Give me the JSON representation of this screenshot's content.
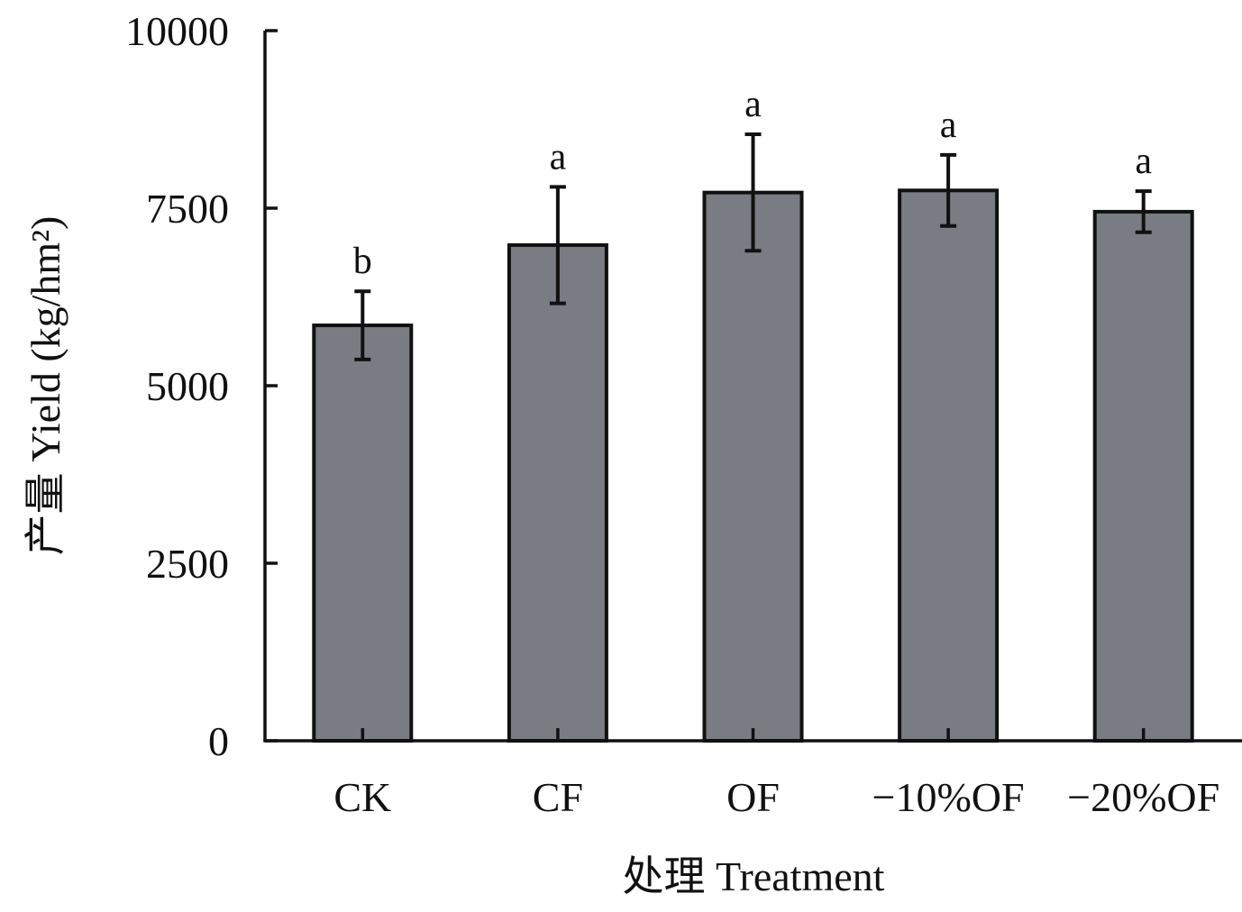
{
  "chart_data": {
    "type": "bar",
    "categories": [
      "CK",
      "CF",
      "OF",
      "−10%OF",
      "−20%OF"
    ],
    "values": [
      5850,
      6980,
      7720,
      7750,
      7450
    ],
    "errors": [
      480,
      820,
      820,
      500,
      290
    ],
    "significance": [
      "b",
      "a",
      "a",
      "a",
      "a"
    ],
    "xlabel": "处理 Treatment",
    "ylabel": "产量 Yield (kg/hm²)",
    "ylim": [
      0,
      10000
    ],
    "yticks": [
      0,
      2500,
      5000,
      7500,
      10000
    ],
    "grid": false,
    "bar_color": "#797c83",
    "edge_color": "#111111"
  }
}
